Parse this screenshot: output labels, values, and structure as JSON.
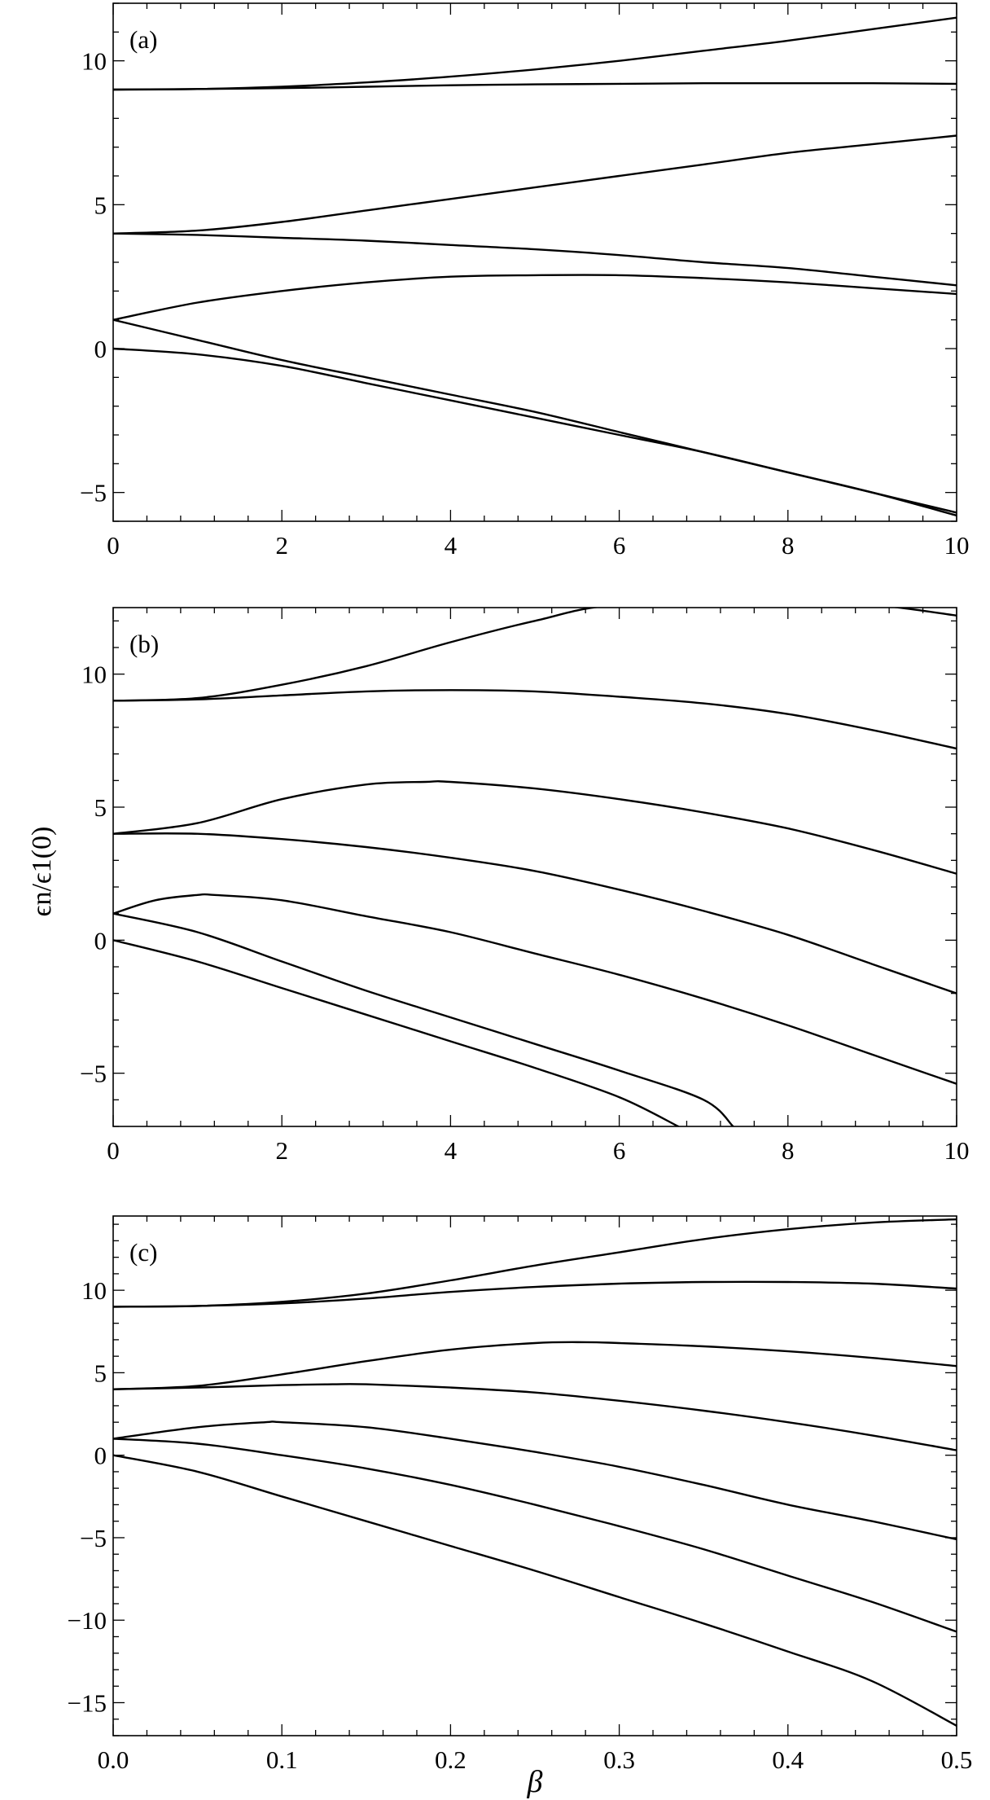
{
  "chart_data": [
    {
      "type": "line",
      "panel_label": "(a)",
      "xlim": [
        0,
        10
      ],
      "ylim": [
        -6,
        12
      ],
      "xticks": [
        0,
        2,
        4,
        6,
        8,
        10
      ],
      "xtick_labels": [
        "0",
        "2",
        "4",
        "6",
        "8",
        "10"
      ],
      "yticks": [
        -5,
        0,
        5,
        10
      ],
      "ytick_labels": [
        "−5",
        "0",
        "5",
        "10"
      ],
      "series": [
        {
          "x": [
            0,
            1,
            2,
            3,
            4,
            5,
            6,
            7,
            8,
            9,
            10
          ],
          "y": [
            0,
            -0.2,
            -0.6,
            -1.2,
            -1.8,
            -2.4,
            -3.0,
            -3.6,
            -4.3,
            -5.0,
            -5.8
          ]
        },
        {
          "x": [
            0,
            1,
            2,
            3,
            4,
            5,
            6,
            7,
            8,
            9,
            10
          ],
          "y": [
            1,
            0.3,
            -0.4,
            -1.0,
            -1.6,
            -2.2,
            -2.9,
            -3.6,
            -4.3,
            -5.0,
            -5.7
          ]
        },
        {
          "x": [
            0,
            1,
            2,
            3,
            4,
            5,
            6,
            7,
            8,
            9,
            10
          ],
          "y": [
            1,
            1.6,
            2.0,
            2.3,
            2.5,
            2.55,
            2.55,
            2.45,
            2.3,
            2.1,
            1.9
          ]
        },
        {
          "x": [
            0,
            1,
            2,
            3,
            4,
            5,
            6,
            7,
            8,
            9,
            10
          ],
          "y": [
            4,
            3.95,
            3.85,
            3.75,
            3.6,
            3.45,
            3.25,
            3.0,
            2.8,
            2.5,
            2.2
          ]
        },
        {
          "x": [
            0,
            1,
            2,
            3,
            4,
            5,
            6,
            7,
            8,
            9,
            10
          ],
          "y": [
            4,
            4.1,
            4.4,
            4.8,
            5.2,
            5.6,
            6.0,
            6.4,
            6.8,
            7.1,
            7.4
          ]
        },
        {
          "x": [
            0,
            1,
            2,
            3,
            4,
            5,
            6,
            7,
            8,
            9,
            10
          ],
          "y": [
            9,
            9.02,
            9.05,
            9.1,
            9.15,
            9.18,
            9.2,
            9.22,
            9.22,
            9.22,
            9.2
          ]
        },
        {
          "x": [
            0,
            1,
            2,
            3,
            4,
            5,
            6,
            7,
            8,
            9,
            10
          ],
          "y": [
            9,
            9.02,
            9.1,
            9.25,
            9.45,
            9.7,
            10.0,
            10.35,
            10.7,
            11.1,
            11.5
          ]
        }
      ]
    },
    {
      "type": "line",
      "panel_label": "(b)",
      "ylabel": "ϵn/ϵ1(0)",
      "xlim": [
        0,
        10
      ],
      "ylim": [
        -7,
        12.5
      ],
      "xticks": [
        0,
        2,
        4,
        6,
        8,
        10
      ],
      "xtick_labels": [
        "0",
        "2",
        "4",
        "6",
        "8",
        "10"
      ],
      "yticks": [
        -5,
        0,
        5,
        10
      ],
      "ytick_labels": [
        "−5",
        "0",
        "5",
        "10"
      ],
      "series": [
        {
          "x": [
            0,
            1,
            2,
            3,
            4,
            5,
            6,
            6.7
          ],
          "y": [
            0,
            -0.8,
            -1.8,
            -2.8,
            -3.8,
            -4.8,
            -5.9,
            -7.0
          ]
        },
        {
          "x": [
            0,
            1,
            2,
            3,
            4,
            5,
            6,
            7,
            7.35
          ],
          "y": [
            1,
            0.3,
            -0.8,
            -1.9,
            -2.9,
            -3.9,
            -4.9,
            -6.0,
            -7.0
          ]
        },
        {
          "x": [
            0,
            0.5,
            1,
            1.2,
            2,
            3,
            4,
            5,
            6,
            7,
            8,
            9,
            10
          ],
          "y": [
            1,
            1.5,
            1.7,
            1.7,
            1.5,
            0.9,
            0.3,
            -0.5,
            -1.3,
            -2.2,
            -3.2,
            -4.3,
            -5.4
          ]
        },
        {
          "x": [
            0,
            1,
            2,
            3,
            4,
            5,
            6,
            7,
            8,
            9,
            10
          ],
          "y": [
            4,
            4.0,
            3.8,
            3.5,
            3.1,
            2.6,
            1.9,
            1.1,
            0.2,
            -0.9,
            -2.0
          ]
        },
        {
          "x": [
            0,
            1,
            2,
            3,
            3.7,
            4,
            5,
            6,
            7,
            8,
            9,
            10
          ],
          "y": [
            4,
            4.4,
            5.3,
            5.85,
            5.95,
            5.95,
            5.7,
            5.3,
            4.8,
            4.2,
            3.4,
            2.5
          ]
        },
        {
          "x": [
            0,
            1,
            2,
            3,
            4,
            5,
            6,
            7,
            8,
            9,
            10
          ],
          "y": [
            9,
            9.05,
            9.2,
            9.35,
            9.4,
            9.35,
            9.15,
            8.9,
            8.5,
            7.9,
            7.2
          ]
        },
        {
          "x": [
            0,
            1,
            2,
            3,
            4,
            5,
            6,
            8,
            9,
            10
          ],
          "y": [
            9,
            9.1,
            9.6,
            10.3,
            11.2,
            12.0,
            12.6,
            12.6,
            12.6,
            12.2
          ]
        }
      ]
    },
    {
      "type": "line",
      "panel_label": "(c)",
      "xlabel": "β",
      "xlim": [
        0,
        0.5
      ],
      "ylim": [
        -17,
        14.5
      ],
      "xticks": [
        0,
        0.1,
        0.2,
        0.3,
        0.4,
        0.5
      ],
      "xtick_labels": [
        "0.0",
        "0.1",
        "0.2",
        "0.3",
        "0.4",
        "0.5"
      ],
      "yticks": [
        -15,
        -10,
        -5,
        0,
        5,
        10
      ],
      "ytick_labels": [
        "−15",
        "−10",
        "−5",
        "0",
        "5",
        "10"
      ],
      "series": [
        {
          "x": [
            0,
            0.05,
            0.1,
            0.15,
            0.2,
            0.25,
            0.3,
            0.35,
            0.4,
            0.45,
            0.5
          ],
          "y": [
            0,
            -1.0,
            -2.5,
            -4.0,
            -5.5,
            -7.0,
            -8.6,
            -10.2,
            -11.9,
            -13.7,
            -16.4
          ]
        },
        {
          "x": [
            0,
            0.05,
            0.1,
            0.15,
            0.2,
            0.25,
            0.3,
            0.35,
            0.4,
            0.45,
            0.5
          ],
          "y": [
            1,
            0.7,
            0.0,
            -0.8,
            -1.8,
            -3.0,
            -4.3,
            -5.7,
            -7.3,
            -8.9,
            -10.7
          ]
        },
        {
          "x": [
            0,
            0.05,
            0.09,
            0.1,
            0.15,
            0.2,
            0.25,
            0.3,
            0.35,
            0.4,
            0.45,
            0.5
          ],
          "y": [
            1,
            1.7,
            2.0,
            2.0,
            1.7,
            1.0,
            0.2,
            -0.7,
            -1.8,
            -3.0,
            -4.0,
            -5.1
          ]
        },
        {
          "x": [
            0,
            0.05,
            0.1,
            0.13,
            0.15,
            0.2,
            0.25,
            0.3,
            0.35,
            0.4,
            0.45,
            0.5
          ],
          "y": [
            4,
            4.1,
            4.25,
            4.3,
            4.3,
            4.1,
            3.8,
            3.3,
            2.7,
            2.0,
            1.2,
            0.3
          ]
        },
        {
          "x": [
            0,
            0.05,
            0.1,
            0.15,
            0.2,
            0.25,
            0.28,
            0.3,
            0.35,
            0.4,
            0.45,
            0.5
          ],
          "y": [
            4,
            4.2,
            4.9,
            5.7,
            6.4,
            6.8,
            6.85,
            6.8,
            6.6,
            6.3,
            5.9,
            5.4
          ]
        },
        {
          "x": [
            0,
            0.05,
            0.1,
            0.15,
            0.2,
            0.25,
            0.3,
            0.35,
            0.4,
            0.45,
            0.5
          ],
          "y": [
            9,
            9.05,
            9.2,
            9.5,
            9.9,
            10.2,
            10.4,
            10.5,
            10.5,
            10.4,
            10.1
          ]
        },
        {
          "x": [
            0,
            0.05,
            0.1,
            0.15,
            0.2,
            0.25,
            0.3,
            0.35,
            0.4,
            0.45,
            0.5
          ],
          "y": [
            9,
            9.05,
            9.3,
            9.8,
            10.6,
            11.5,
            12.3,
            13.1,
            13.7,
            14.1,
            14.3
          ]
        }
      ]
    }
  ]
}
